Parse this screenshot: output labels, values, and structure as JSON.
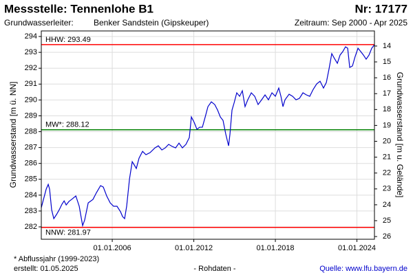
{
  "chart_data": {
    "type": "line",
    "title": "Messstelle: Tennenlohe B1",
    "number": "Nr: 17177",
    "aquifer_label": "Grundwasserleiter:",
    "aquifer": "Benker Sandstein (Gipskeuper)",
    "period": "Zeitraum: Sep 2000 - Apr 2025",
    "ylabel": "Grundwasserstand [m ü. NN]",
    "y2label": "Grundwasserstand [m u. Gelände]",
    "footer": {
      "note": "* Abflussjahr (1999-2023)",
      "created": "erstellt:  01.05.2025",
      "raw": "- Rohdaten -",
      "source": "Quelle: www.lfu.bayern.de"
    },
    "reference_lines": [
      {
        "label": "HHW: 293.49",
        "value": 293.49,
        "color": "#ff0000"
      },
      {
        "label": "MW*: 288.12",
        "value": 288.12,
        "color": "#008000"
      },
      {
        "label": "NNW: 281.97",
        "value": 281.97,
        "color": "#ff0000"
      }
    ],
    "xlim": [
      2000.78,
      2025.29
    ],
    "xticks": [
      {
        "value": 2006,
        "label": "01.01.2006"
      },
      {
        "value": 2012,
        "label": "01.01.2012"
      },
      {
        "value": 2018,
        "label": "01.01.2018"
      },
      {
        "value": 2024,
        "label": "01.01.2024"
      }
    ],
    "ylim": [
      281.22,
      294.35
    ],
    "yticks": [
      282,
      283,
      284,
      285,
      286,
      287,
      288,
      289,
      290,
      291,
      292,
      293,
      294
    ],
    "y2lim": [
      26.17,
      13.05
    ],
    "y2ticks": [
      14,
      15,
      16,
      17,
      18,
      19,
      20,
      21,
      22,
      23,
      24,
      25,
      26
    ],
    "grid": true,
    "x": [
      2000.78,
      2000.94,
      2001.14,
      2001.29,
      2001.39,
      2001.54,
      2001.7,
      2001.9,
      2002.1,
      2002.3,
      2002.46,
      2002.61,
      2002.81,
      2003.01,
      2003.32,
      2003.57,
      2003.82,
      2003.97,
      2004.23,
      2004.58,
      2004.84,
      2005.14,
      2005.34,
      2005.59,
      2005.85,
      2006.1,
      2006.35,
      2006.61,
      2006.76,
      2006.91,
      2007.06,
      2007.27,
      2007.47,
      2007.62,
      2007.77,
      2007.97,
      2008.23,
      2008.48,
      2008.78,
      2009.14,
      2009.39,
      2009.65,
      2009.9,
      2010.15,
      2010.41,
      2010.66,
      2010.91,
      2011.16,
      2011.42,
      2011.67,
      2011.82,
      2012.03,
      2012.23,
      2012.43,
      2012.63,
      2012.84,
      2013.04,
      2013.29,
      2013.54,
      2013.75,
      2013.95,
      2014.15,
      2014.35,
      2014.56,
      2014.66,
      2014.81,
      2014.96,
      2015.16,
      2015.37,
      2015.57,
      2015.77,
      2015.97,
      2016.23,
      2016.48,
      2016.73,
      2016.99,
      2017.24,
      2017.49,
      2017.75,
      2018.0,
      2018.25,
      2018.41,
      2018.56,
      2018.71,
      2019.01,
      2019.27,
      2019.52,
      2019.77,
      2020.03,
      2020.28,
      2020.53,
      2020.78,
      2021.04,
      2021.29,
      2021.54,
      2021.75,
      2021.95,
      2022.15,
      2022.35,
      2022.56,
      2022.76,
      2022.96,
      2023.16,
      2023.32,
      2023.47,
      2023.67,
      2023.87,
      2024.08,
      2024.28,
      2024.48,
      2024.68,
      2024.89,
      2025.09,
      2025.29
    ],
    "series": [
      {
        "color": "#0000cc",
        "values": [
          283.21,
          283.73,
          284.38,
          284.68,
          284.38,
          283.08,
          282.52,
          282.78,
          283.08,
          283.43,
          283.64,
          283.38,
          283.6,
          283.73,
          283.95,
          283.3,
          282.08,
          282.43,
          283.51,
          283.73,
          284.16,
          284.6,
          284.51,
          283.95,
          283.51,
          283.3,
          283.3,
          282.95,
          282.65,
          282.52,
          283.3,
          285.03,
          286.11,
          285.9,
          285.68,
          286.33,
          286.76,
          286.55,
          286.68,
          286.98,
          287.11,
          286.85,
          286.98,
          287.2,
          287.07,
          286.98,
          287.28,
          286.98,
          287.2,
          287.63,
          288.93,
          288.58,
          288.15,
          288.28,
          288.28,
          288.93,
          289.58,
          289.88,
          289.71,
          289.36,
          288.93,
          288.71,
          287.85,
          287.11,
          287.85,
          289.36,
          289.8,
          290.45,
          290.23,
          290.58,
          289.58,
          290.01,
          290.45,
          290.23,
          289.71,
          290.01,
          290.32,
          290.01,
          290.45,
          290.23,
          290.75,
          290.23,
          289.58,
          290.01,
          290.36,
          290.23,
          290.01,
          290.1,
          290.45,
          290.32,
          290.23,
          290.66,
          291.01,
          291.18,
          290.75,
          291.1,
          291.96,
          292.92,
          292.61,
          292.31,
          292.83,
          293.05,
          293.35,
          293.26,
          292.05,
          292.14,
          292.74,
          293.26,
          293.05,
          292.83,
          292.57,
          292.83,
          293.26,
          293.48
        ]
      }
    ]
  }
}
